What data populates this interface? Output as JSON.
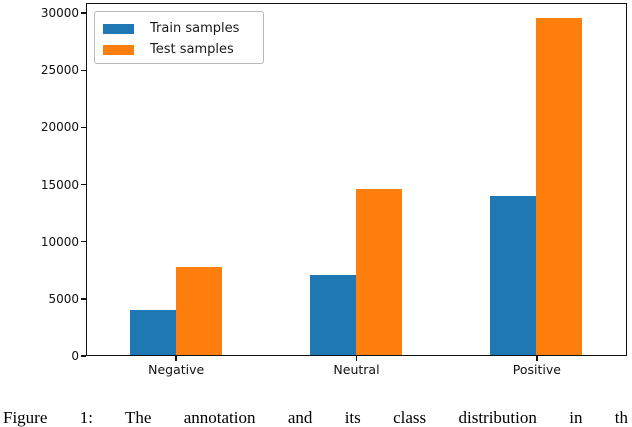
{
  "figure": {
    "caption": "Figure 1: The annotation and its class distribution in th"
  },
  "chart_data": {
    "type": "bar",
    "title": "",
    "xlabel": "",
    "ylabel": "",
    "categories": [
      "Negative",
      "Neutral",
      "Positive"
    ],
    "series": [
      {
        "name": "Train samples",
        "color": "#1f77b4",
        "values": [
          3900,
          7000,
          13900
        ]
      },
      {
        "name": "Test samples",
        "color": "#ff7f0e",
        "values": [
          7700,
          14500,
          29500
        ]
      }
    ],
    "yticks": [
      0,
      5000,
      10000,
      15000,
      20000,
      25000,
      30000
    ],
    "ylim": [
      0,
      30880
    ],
    "grid": false,
    "legend_position": "upper left",
    "spine_color": "#111111"
  }
}
